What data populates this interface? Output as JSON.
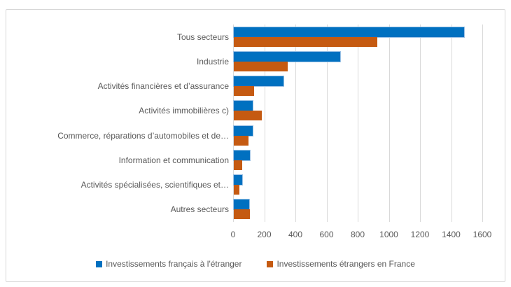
{
  "chart_data": {
    "type": "bar",
    "orientation": "horizontal",
    "title": "",
    "categories": [
      "Tous secteurs",
      "Industrie",
      "Activités financières et d’assurance",
      "Activités immobilières c)",
      "Commerce, réparations d’automobiles et de…",
      "Information et communication",
      "Activités spécialisées, scientifiques et…",
      "Autres secteurs"
    ],
    "series": [
      {
        "name": "Investissements français à l'étranger",
        "color": "#0070C0",
        "values": [
          1480,
          685,
          320,
          120,
          120,
          105,
          55,
          100
        ]
      },
      {
        "name": "Investissements étrangers en France",
        "color": "#C55A11",
        "values": [
          920,
          345,
          130,
          180,
          95,
          55,
          35,
          105
        ]
      }
    ],
    "xlim": [
      0,
      1600
    ],
    "x_ticks": [
      0,
      200,
      400,
      600,
      800,
      1000,
      1200,
      1400,
      1600
    ],
    "grid": true,
    "legend_position": "bottom"
  },
  "styles": {
    "grid_color": "#D9D9D9",
    "frame_border_color": "#D7D7D7",
    "text_color": "#595959",
    "blue_bar_highlight": "#9DC3E6"
  }
}
